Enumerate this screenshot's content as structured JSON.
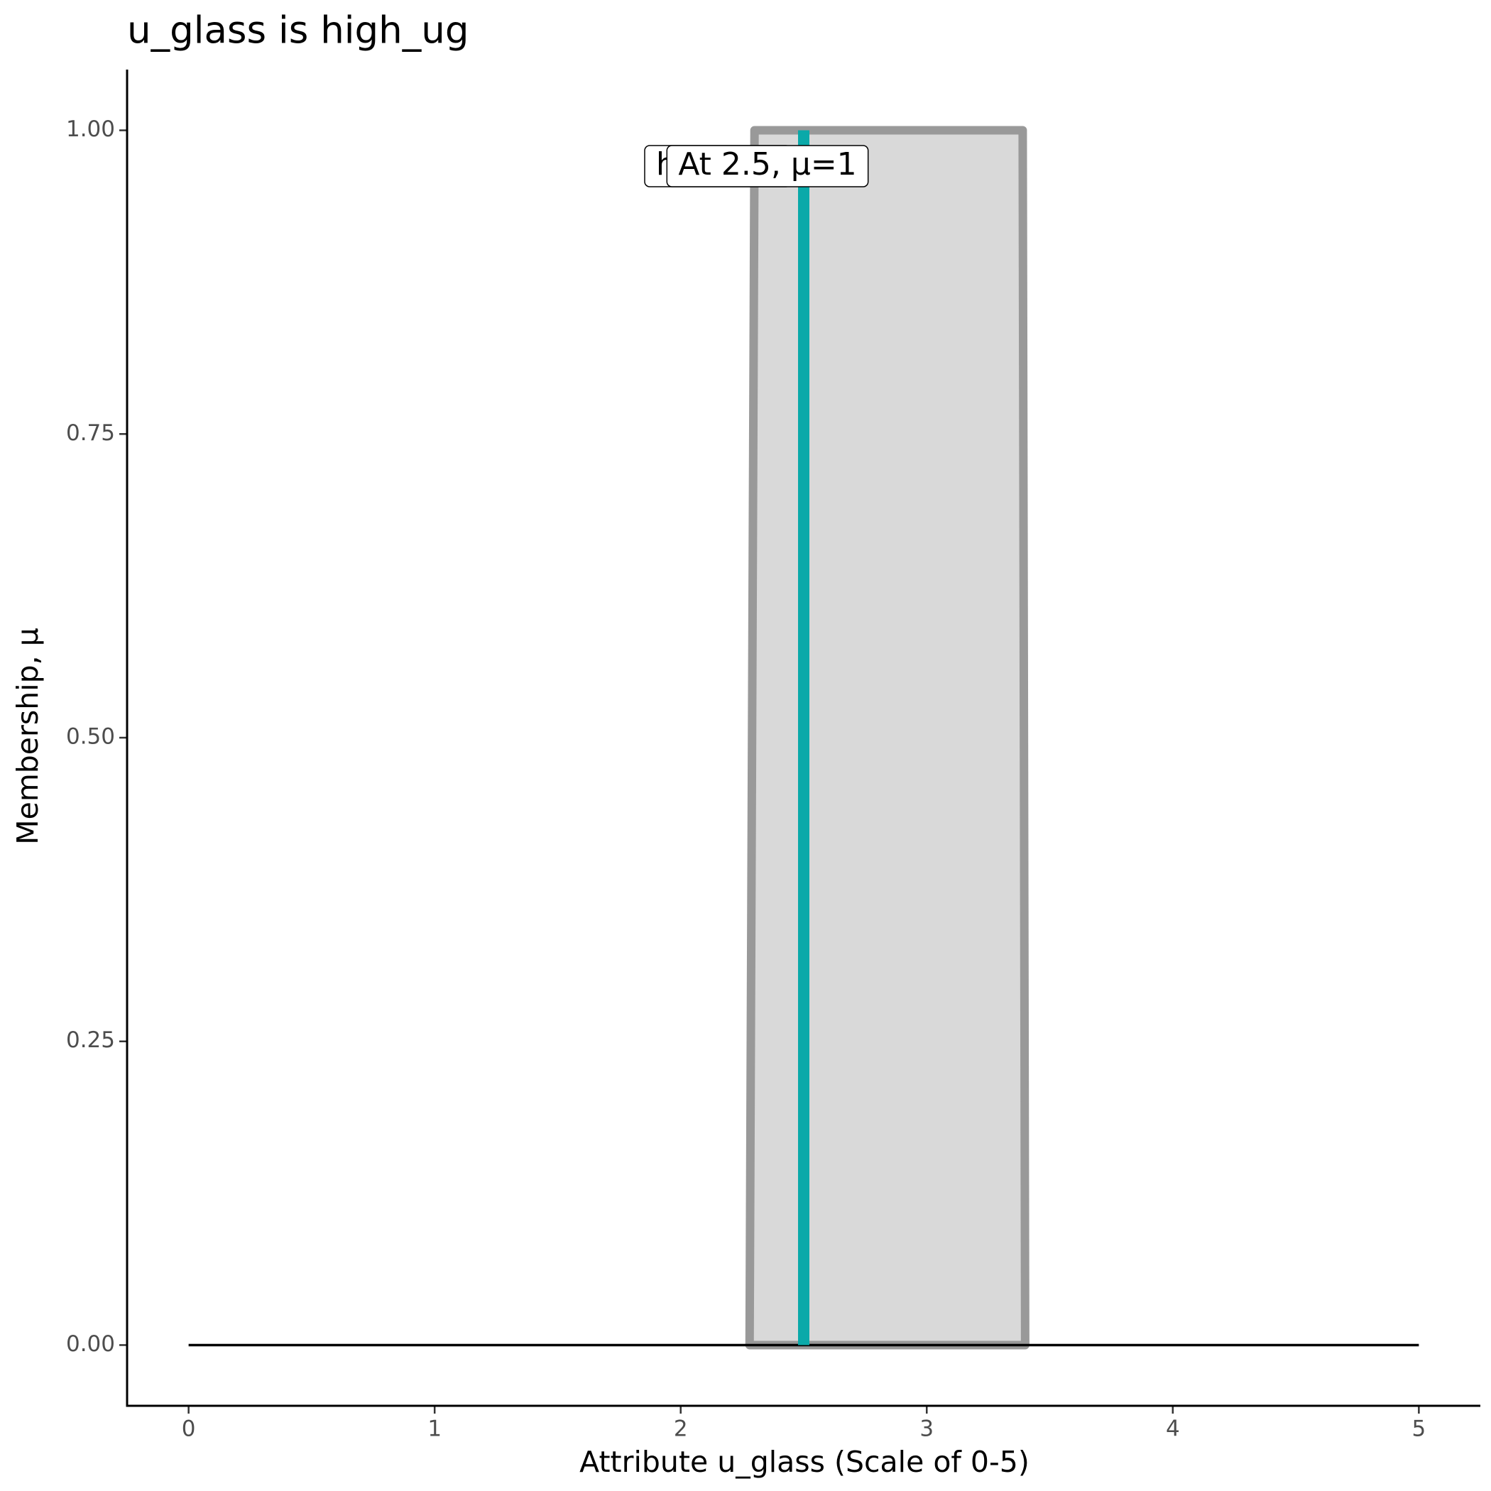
{
  "chart_data": {
    "type": "membership",
    "title": "u_glass is high_ug",
    "x_label": "Attribute u_glass (Scale of 0-5)",
    "y_label": "Membership, μ",
    "xlim": [
      -0.25,
      5.25
    ],
    "ylim": [
      -0.05,
      1.05
    ],
    "xticks": [
      0,
      1,
      2,
      3,
      4,
      5
    ],
    "yticks": [
      {
        "value": 0,
        "label": "0.00"
      },
      {
        "value": 0.25,
        "label": "0.25"
      },
      {
        "value": 0.5,
        "label": "0.50"
      },
      {
        "value": 0.75,
        "label": "0.75"
      },
      {
        "value": 1,
        "label": "1.00"
      }
    ],
    "baseline": {
      "x": [
        0,
        5
      ],
      "values": [
        0,
        0
      ],
      "color": "#000000"
    },
    "membership": {
      "name": "high_ug",
      "x": [
        2.28,
        2.3,
        3.39,
        3.4
      ],
      "values": [
        0,
        1,
        1,
        0
      ],
      "color": "#999999",
      "fill": "#d9d9d9"
    },
    "marker": {
      "x": 2.5,
      "value": 1,
      "color": "#0aa9a9",
      "label": "At 2.5, μ=1"
    }
  }
}
